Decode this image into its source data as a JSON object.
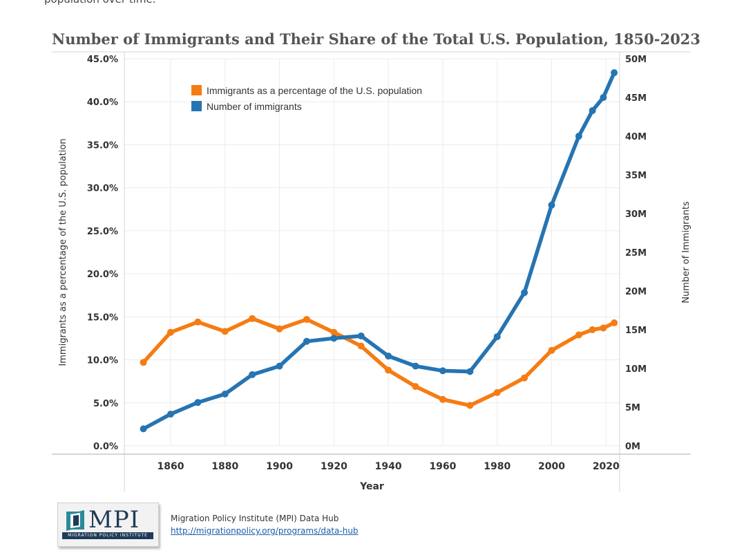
{
  "page": {
    "intro_text": "population over time."
  },
  "chart_data": {
    "type": "line",
    "title": "Number of Immigrants and Their Share of the Total U.S. Population, 1850-2023",
    "xlabel": "Year",
    "ylabel_left": "Immigrants as a percentage of the U.S. population",
    "ylabel_right": "Number of Immigrants",
    "xlim": [
      1843,
      2025
    ],
    "ylim_left": [
      0,
      45
    ],
    "ylim_right": [
      0,
      50000000
    ],
    "x_ticks": [
      "1860",
      "1880",
      "1900",
      "1920",
      "1940",
      "1960",
      "1980",
      "2000",
      "2020"
    ],
    "y_left_ticks": [
      "0.0%",
      "5.0%",
      "10.0%",
      "15.0%",
      "20.0%",
      "25.0%",
      "30.0%",
      "35.0%",
      "40.0%",
      "45.0%"
    ],
    "y_right_ticks": [
      "0M",
      "5M",
      "10M",
      "15M",
      "20M",
      "25M",
      "30M",
      "35M",
      "40M",
      "45M",
      "50M"
    ],
    "grid": true,
    "legend_position": "top-left",
    "legend": [
      {
        "label": "Immigrants as a percentage of the U.S. population",
        "color": "#f57c13"
      },
      {
        "label": "Number of immigrants",
        "color": "#2674b2"
      }
    ],
    "x": [
      1850,
      1860,
      1870,
      1880,
      1890,
      1900,
      1910,
      1920,
      1930,
      1940,
      1950,
      1960,
      1970,
      1980,
      1990,
      2000,
      2010,
      2015,
      2019,
      2023
    ],
    "series": [
      {
        "name": "Immigrants as a percentage of the U.S. population",
        "axis": "left",
        "color": "#f57c13",
        "values": [
          9.7,
          13.2,
          14.4,
          13.3,
          14.8,
          13.6,
          14.7,
          13.2,
          11.6,
          8.8,
          6.9,
          5.4,
          4.7,
          6.2,
          7.9,
          11.1,
          12.9,
          13.5,
          13.7,
          14.3
        ]
      },
      {
        "name": "Number of immigrants",
        "axis": "right",
        "color": "#2674b2",
        "values": [
          2200000,
          4100000,
          5600000,
          6700000,
          9200000,
          10300000,
          13500000,
          13900000,
          14200000,
          11600000,
          10300000,
          9700000,
          9600000,
          14100000,
          19800000,
          31100000,
          40000000,
          43300000,
          45000000,
          48200000
        ]
      }
    ]
  },
  "footer": {
    "logo_text": "MPI",
    "logo_band_text": "MIGRATION POLICY INSTITUTE",
    "source_text": "Migration Policy Institute (MPI) Data Hub",
    "link_text": "http://migrationpolicy.org/programs/data-hub"
  }
}
